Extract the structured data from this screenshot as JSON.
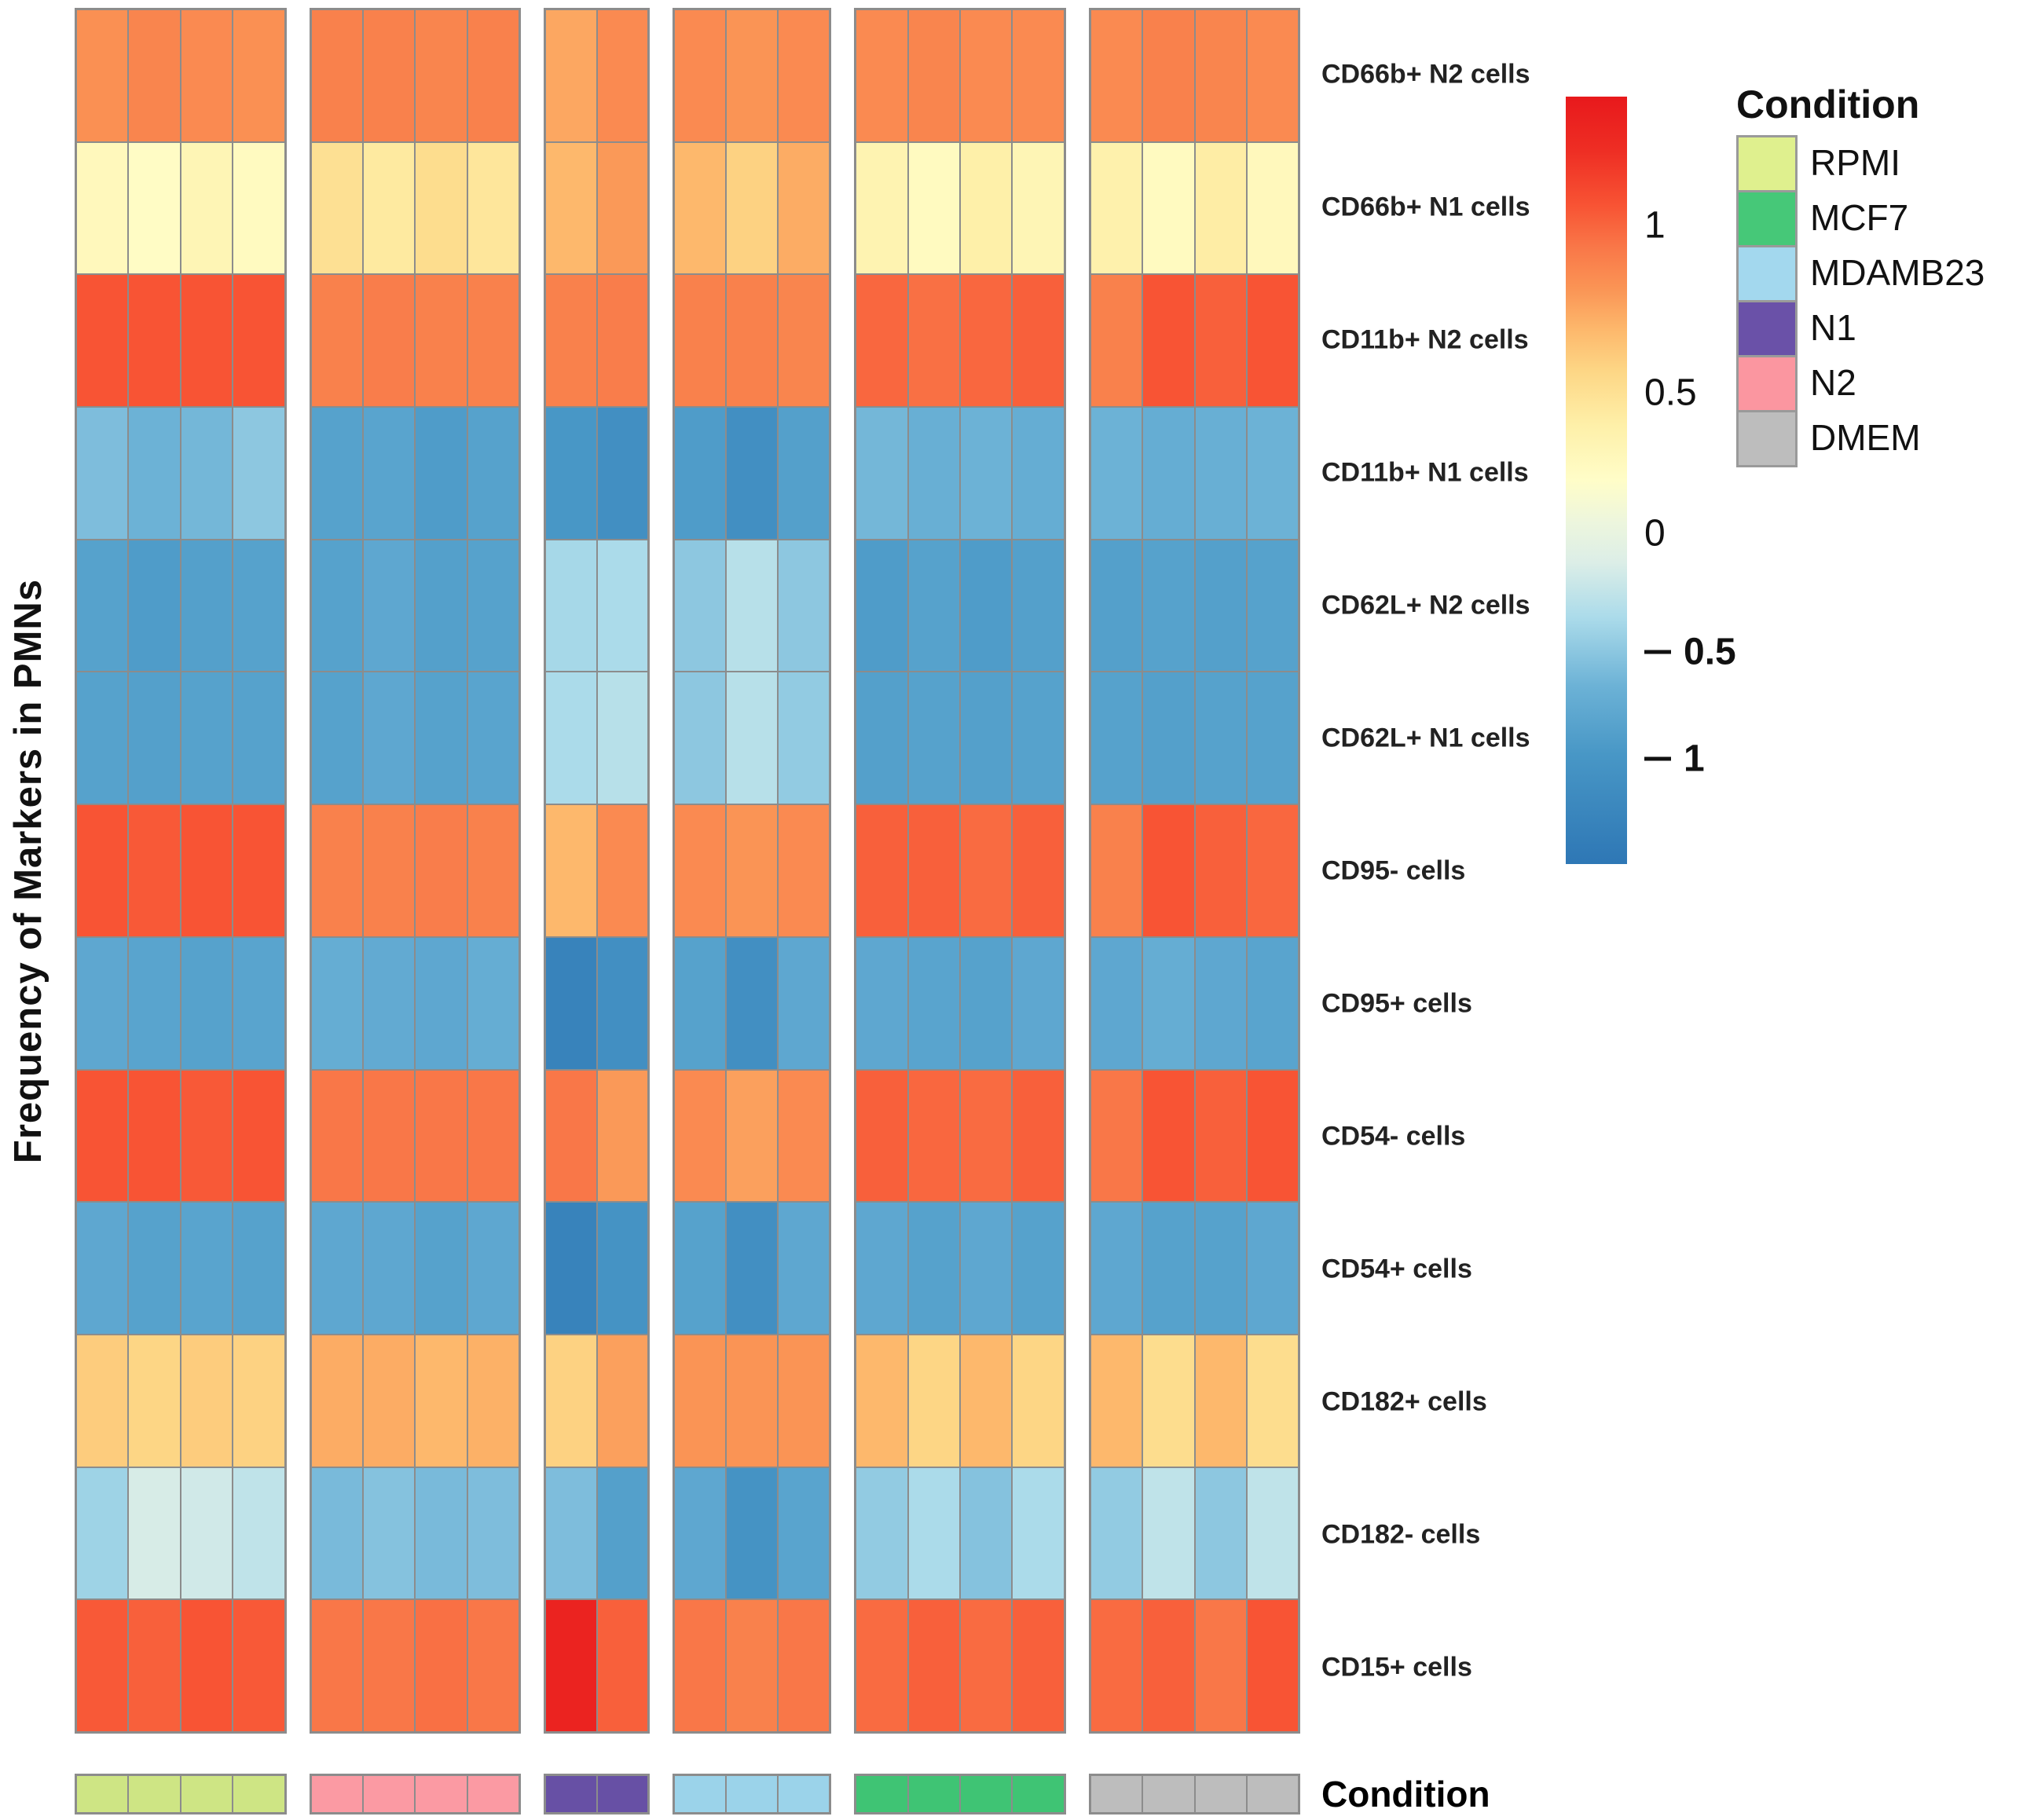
{
  "condition_axis_label": "Condition",
  "chart_data": {
    "type": "heatmap",
    "ylabel": "Frequency of Markers in PMNs",
    "rows": [
      "CD66b+ N2 cells",
      "CD66b+ N1 cells",
      "CD11b+ N2 cells",
      "CD11b+ N1 cells",
      "CD62L+ N2 cells",
      "CD62L+ N1 cells",
      "CD95- cells",
      "CD95+ cells",
      "CD54- cells",
      "CD54+ cells",
      "CD182+ cells",
      "CD182- cells",
      "CD15+ cells"
    ],
    "column_groups": [
      {
        "condition": "RPMI",
        "bar_color": "#cee584",
        "columns": 4,
        "values": [
          [
            0.72,
            0.78,
            0.75,
            0.72
          ],
          [
            0.08,
            0.02,
            0.12,
            0.05
          ],
          [
            1.0,
            1.0,
            1.0,
            1.0
          ],
          [
            -0.68,
            -0.75,
            -0.72,
            -0.62
          ],
          [
            -0.9,
            -0.95,
            -0.92,
            -0.9
          ],
          [
            -0.9,
            -0.92,
            -0.9,
            -0.9
          ],
          [
            1.0,
            0.98,
            1.0,
            1.0
          ],
          [
            -0.85,
            -0.88,
            -0.9,
            -0.88
          ],
          [
            1.0,
            1.0,
            0.98,
            1.0
          ],
          [
            -0.85,
            -0.9,
            -0.88,
            -0.9
          ],
          [
            0.45,
            0.4,
            0.45,
            0.42
          ],
          [
            -0.55,
            -0.32,
            -0.35,
            -0.42
          ],
          [
            0.98,
            0.95,
            1.0,
            0.98
          ]
        ]
      },
      {
        "condition": "N2",
        "bar_color": "#fb9aa3",
        "columns": 4,
        "values": [
          [
            0.8,
            0.8,
            0.78,
            0.8
          ],
          [
            0.32,
            0.25,
            0.35,
            0.28
          ],
          [
            0.8,
            0.82,
            0.8,
            0.8
          ],
          [
            -0.9,
            -0.88,
            -0.95,
            -0.9
          ],
          [
            -0.9,
            -0.85,
            -0.92,
            -0.9
          ],
          [
            -0.9,
            -0.85,
            -0.9,
            -0.88
          ],
          [
            0.8,
            0.8,
            0.82,
            0.8
          ],
          [
            -0.8,
            -0.82,
            -0.85,
            -0.8
          ],
          [
            0.85,
            0.85,
            0.85,
            0.85
          ],
          [
            -0.85,
            -0.85,
            -0.9,
            -0.85
          ],
          [
            0.6,
            0.6,
            0.55,
            0.58
          ],
          [
            -0.7,
            -0.65,
            -0.7,
            -0.68
          ],
          [
            0.85,
            0.85,
            0.88,
            0.85
          ]
        ]
      },
      {
        "condition": "N1",
        "bar_color": "#6750a5",
        "columns": 2,
        "values": [
          [
            0.62,
            0.75
          ],
          [
            0.55,
            0.68
          ],
          [
            0.8,
            0.82
          ],
          [
            -1.0,
            -1.1
          ],
          [
            -0.52,
            -0.5
          ],
          [
            -0.5,
            -0.45
          ],
          [
            0.55,
            0.75
          ],
          [
            -1.25,
            -1.1
          ],
          [
            0.85,
            0.68
          ],
          [
            -1.25,
            -1.05
          ],
          [
            0.42,
            0.65
          ],
          [
            -0.68,
            -0.92
          ],
          [
            1.3,
            0.95
          ]
        ]
      },
      {
        "condition": "MDAMB23",
        "bar_color": "#9bd3ea",
        "columns": 3,
        "values": [
          [
            0.75,
            0.7,
            0.75
          ],
          [
            0.55,
            0.42,
            0.6
          ],
          [
            0.8,
            0.8,
            0.78
          ],
          [
            -0.95,
            -1.1,
            -0.92
          ],
          [
            -0.62,
            -0.45,
            -0.62
          ],
          [
            -0.62,
            -0.45,
            -0.6
          ],
          [
            0.75,
            0.7,
            0.75
          ],
          [
            -0.9,
            -1.1,
            -0.85
          ],
          [
            0.75,
            0.65,
            0.75
          ],
          [
            -0.9,
            -1.1,
            -0.85
          ],
          [
            0.7,
            0.7,
            0.7
          ],
          [
            -0.85,
            -1.05,
            -0.88
          ],
          [
            0.85,
            0.8,
            0.85
          ]
        ]
      },
      {
        "condition": "MCF7",
        "bar_color": "#3fc474",
        "columns": 4,
        "values": [
          [
            0.75,
            0.78,
            0.75,
            0.75
          ],
          [
            0.15,
            0.05,
            0.2,
            0.12
          ],
          [
            0.92,
            0.88,
            0.92,
            0.95
          ],
          [
            -0.72,
            -0.78,
            -0.75,
            -0.8
          ],
          [
            -0.95,
            -0.9,
            -0.95,
            -0.92
          ],
          [
            -0.92,
            -0.9,
            -0.92,
            -0.9
          ],
          [
            0.95,
            0.95,
            0.9,
            0.95
          ],
          [
            -0.85,
            -0.88,
            -0.9,
            -0.85
          ],
          [
            0.95,
            0.92,
            0.9,
            0.95
          ],
          [
            -0.85,
            -0.9,
            -0.85,
            -0.9
          ],
          [
            0.55,
            0.4,
            0.55,
            0.4
          ],
          [
            -0.6,
            -0.5,
            -0.65,
            -0.5
          ],
          [
            0.9,
            0.95,
            0.9,
            0.95
          ]
        ]
      },
      {
        "condition": "DMEM",
        "bar_color": "#bdbdbd",
        "columns": 4,
        "values": [
          [
            0.75,
            0.8,
            0.78,
            0.75
          ],
          [
            0.18,
            0.05,
            0.22,
            0.08
          ],
          [
            0.8,
            1.0,
            0.95,
            1.0
          ],
          [
            -0.75,
            -0.8,
            -0.78,
            -0.75
          ],
          [
            -0.92,
            -0.9,
            -0.92,
            -0.9
          ],
          [
            -0.9,
            -0.92,
            -0.9,
            -0.9
          ],
          [
            0.8,
            1.0,
            0.95,
            0.92
          ],
          [
            -0.85,
            -0.8,
            -0.85,
            -0.88
          ],
          [
            0.85,
            1.0,
            0.95,
            1.0
          ],
          [
            -0.85,
            -0.9,
            -0.9,
            -0.85
          ],
          [
            0.55,
            0.35,
            0.55,
            0.35
          ],
          [
            -0.6,
            -0.42,
            -0.62,
            -0.42
          ],
          [
            0.9,
            0.95,
            0.85,
            1.0
          ]
        ]
      }
    ],
    "color_scale": {
      "domain": [
        -1.4,
        1.4
      ],
      "stops": [
        {
          "t": -1.4,
          "c": "#2e77b5"
        },
        {
          "t": -1.0,
          "c": "#4897c6"
        },
        {
          "t": -0.75,
          "c": "#6cb2d6"
        },
        {
          "t": -0.5,
          "c": "#abdbea"
        },
        {
          "t": -0.3,
          "c": "#dceee7"
        },
        {
          "t": -0.15,
          "c": "#edf6dd"
        },
        {
          "t": 0.0,
          "c": "#fffdc8"
        },
        {
          "t": 0.2,
          "c": "#fef0a9"
        },
        {
          "t": 0.4,
          "c": "#fdd685"
        },
        {
          "t": 0.55,
          "c": "#fdb86c"
        },
        {
          "t": 0.7,
          "c": "#fa9455"
        },
        {
          "t": 0.85,
          "c": "#f97748"
        },
        {
          "t": 1.0,
          "c": "#f85434"
        },
        {
          "t": 1.2,
          "c": "#ee2e24"
        },
        {
          "t": 1.4,
          "c": "#e8191c"
        }
      ],
      "ticks": [
        {
          "label": "1",
          "value": 1,
          "pos": 0.168,
          "negative": false
        },
        {
          "label": "0.5",
          "value": 0.5,
          "pos": 0.386,
          "negative": false
        },
        {
          "label": "0",
          "value": 0,
          "pos": 0.569,
          "negative": false
        },
        {
          "label": "0.5",
          "value": -0.5,
          "pos": 0.724,
          "negative": true
        },
        {
          "label": "1",
          "value": -1,
          "pos": 0.863,
          "negative": true
        }
      ]
    },
    "legend": {
      "title": "Condition",
      "items": [
        {
          "label": "RPMI",
          "color": "#dff08e"
        },
        {
          "label": "MCF7",
          "color": "#46c878"
        },
        {
          "label": "MDAMB23",
          "color": "#a3d8ee"
        },
        {
          "label": "N1",
          "color": "#6a51a8"
        },
        {
          "label": "N2",
          "color": "#fb96a0"
        },
        {
          "label": "DMEM",
          "color": "#bdbdbd"
        }
      ]
    }
  }
}
